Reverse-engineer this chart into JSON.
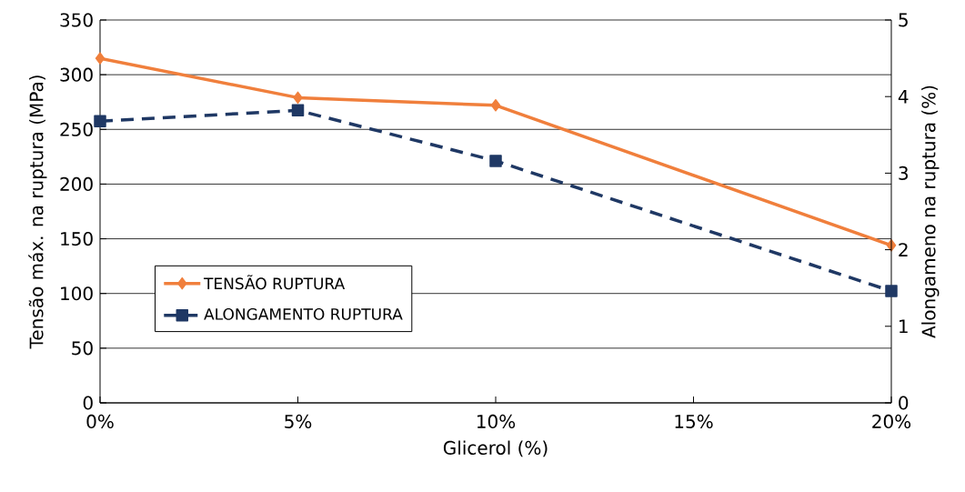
{
  "chart_data": {
    "type": "line",
    "xlabel": "Glicerol (%)",
    "ylabel": "Tensão máx. na ruptura (MPa)",
    "y2label": "Alongameno na ruptura (%)",
    "x": [
      0,
      5,
      10,
      20
    ],
    "xlim": [
      0,
      20
    ],
    "xticks": [
      {
        "value": 0,
        "label": "0%"
      },
      {
        "value": 5,
        "label": "5%"
      },
      {
        "value": 10,
        "label": "10%"
      },
      {
        "value": 15,
        "label": "15%"
      },
      {
        "value": 20,
        "label": "20%"
      }
    ],
    "ylim": [
      0,
      350
    ],
    "yticks": [
      0,
      50,
      100,
      150,
      200,
      250,
      300,
      350
    ],
    "y2lim": [
      0,
      5
    ],
    "y2ticks": [
      0,
      1,
      2,
      3,
      4,
      5
    ],
    "grid": "y",
    "legend": "bottom left",
    "series": [
      {
        "name": "TENSÃO RUPTURA",
        "color": "#f07f3c",
        "values": [
          315,
          279,
          272,
          144
        ],
        "marker": "diamond",
        "line_style": "solid"
      },
      {
        "name": "ALONGAMENTO RUPTURA",
        "color": "#1f3864",
        "values": [
          3.68,
          3.82,
          3.16,
          1.46
        ],
        "marker": "square",
        "line_style": "dashed",
        "axis": "y2"
      }
    ]
  }
}
